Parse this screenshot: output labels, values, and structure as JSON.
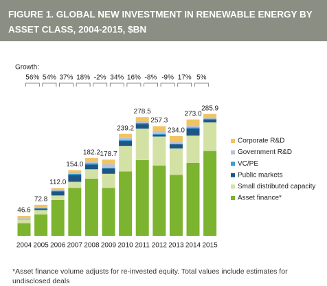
{
  "chart_data": {
    "type": "stacked_bar",
    "title": [
      "FIGURE 1. GLOBAL NEW INVESTMENT IN RENEWABLE ENERGY BY",
      "ASSET CLASS, 2004-2015, $BN"
    ],
    "growth_title": "Growth:",
    "growth_labels": [
      "56%",
      "54%",
      "37%",
      "18%",
      "-2%",
      "34%",
      "16%",
      "-8%",
      "-9%",
      "17%",
      "5%"
    ],
    "categories": [
      "2004",
      "2005",
      "2006",
      "2007",
      "2008",
      "2009",
      "2010",
      "2011",
      "2012",
      "2013",
      "2014",
      "2015"
    ],
    "series": [
      {
        "name": "Asset finance*",
        "color": "#7cb32f",
        "values": [
          29.6,
          50.0,
          84.0,
          112.5,
          134.0,
          112.5,
          151.0,
          177.5,
          165.0,
          143.0,
          171.0,
          199.0
        ]
      },
      {
        "name": "Small distributed capacity",
        "color": "#d3e2a4",
        "values": [
          8.6,
          10.5,
          10.6,
          14.2,
          22.0,
          33.0,
          60.0,
          74.0,
          68.0,
          62.0,
          64.0,
          67.0
        ]
      },
      {
        "name": "Public markets",
        "color": "#1d5686",
        "values": [
          0.3,
          3.4,
          9.5,
          16.0,
          11.0,
          12.5,
          11.5,
          11.0,
          4.0,
          10.0,
          16.5,
          6.5
        ]
      },
      {
        "name": "VC/PE",
        "color": "#3d9bd6",
        "values": [
          0.4,
          1.0,
          1.5,
          2.7,
          3.1,
          1.5,
          2.5,
          2.5,
          2.3,
          0.8,
          2.5,
          2.3
        ]
      },
      {
        "name": "Government R&D",
        "color": "#b9c3d4",
        "values": [
          2.3,
          2.0,
          2.0,
          3.0,
          3.6,
          8.3,
          5.0,
          4.5,
          6.5,
          6.5,
          5.5,
          4.0
        ]
      },
      {
        "name": "Corporate R&D",
        "color": "#f1c463",
        "values": [
          5.4,
          5.9,
          4.4,
          5.6,
          8.5,
          10.9,
          9.2,
          9.0,
          11.5,
          11.7,
          13.5,
          7.1
        ]
      }
    ],
    "total_labels": [
      "46.6",
      "72.8",
      "112.0",
      "154.0",
      "182.2",
      "178.7",
      "239.2",
      "278.5",
      "257.3",
      "234.0",
      "273.0",
      "285.9"
    ],
    "footnote": [
      "*Asset finance volume adjusts for re-invested equity.  Total values include estimates for",
      "undisclosed deals"
    ]
  }
}
